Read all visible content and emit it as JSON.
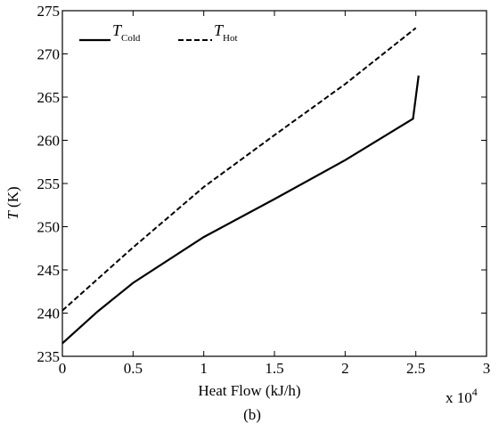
{
  "chart_data": {
    "type": "line",
    "caption": "(b)",
    "xlabel": "Heat Flow (kJ/h)",
    "ylabel_symbol": "T",
    "ylabel_unit": " (K)",
    "x_multiplier": "x 10",
    "x_multiplier_exponent": "4",
    "xlim": [
      0,
      3
    ],
    "ylim": [
      235,
      275
    ],
    "x_ticks": [
      0,
      0.5,
      1,
      1.5,
      2,
      2.5,
      3
    ],
    "x_tick_labels": [
      "0",
      "0.5",
      "1",
      "1.5",
      "2",
      "2.5",
      "3"
    ],
    "y_ticks": [
      235,
      240,
      245,
      250,
      255,
      260,
      265,
      270,
      275
    ],
    "y_tick_labels": [
      "235",
      "240",
      "245",
      "250",
      "255",
      "260",
      "265",
      "270",
      "275"
    ],
    "grid": false,
    "legend_placement": "top-left",
    "series": [
      {
        "name": "T",
        "name_sub": "Cold",
        "style": "solid",
        "color": "#000000",
        "x": [
          0,
          0.25,
          0.5,
          1.0,
          1.5,
          2.0,
          2.48,
          2.52
        ],
        "y": [
          236.5,
          240.2,
          243.5,
          248.8,
          253.2,
          257.7,
          262.5,
          267.5
        ]
      },
      {
        "name": "T",
        "name_sub": "Hot",
        "style": "dashed",
        "color": "#000000",
        "x": [
          0,
          0.5,
          1.0,
          1.5,
          2.0,
          2.5
        ],
        "y": [
          240.3,
          247.6,
          254.6,
          260.6,
          266.5,
          273
        ]
      }
    ]
  }
}
